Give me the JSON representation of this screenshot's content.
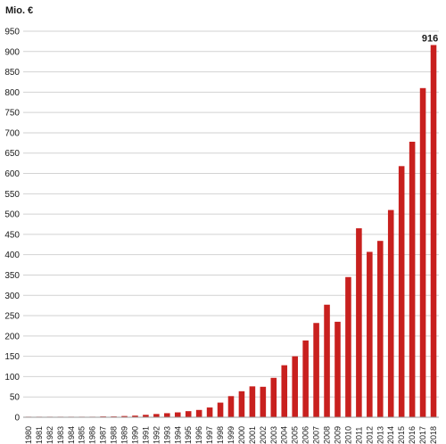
{
  "chart_data": {
    "type": "bar",
    "title": "",
    "unit_label": "Mio. €",
    "xlabel": "",
    "ylabel": "",
    "ylim": [
      0,
      950
    ],
    "yticks": [
      0,
      50,
      100,
      150,
      200,
      250,
      300,
      350,
      400,
      450,
      500,
      550,
      600,
      650,
      700,
      750,
      800,
      850,
      900,
      950
    ],
    "grid": true,
    "bar_color": "#c8201e",
    "categories": [
      "1980",
      "1981",
      "1982",
      "1983",
      "1984",
      "1985",
      "1986",
      "1987",
      "1988",
      "1989",
      "1990",
      "1991",
      "1992",
      "1993",
      "1994",
      "1995",
      "1996",
      "1997",
      "1998",
      "1999",
      "2000",
      "2001",
      "2002",
      "2003",
      "2004",
      "2005",
      "2006",
      "2007",
      "2008",
      "2009",
      "2010",
      "2011",
      "2012",
      "2013",
      "2014",
      "2015",
      "2016",
      "2017",
      "2018"
    ],
    "values": [
      0.5,
      0.5,
      0.5,
      0.5,
      1,
      1,
      1,
      2,
      2,
      3,
      4,
      6,
      8,
      10,
      12,
      15,
      18,
      24,
      36,
      52,
      64,
      76,
      75,
      97,
      128,
      150,
      189,
      232,
      277,
      235,
      345,
      465,
      407,
      434,
      510,
      618,
      678,
      810,
      916
    ],
    "data_labels": [
      {
        "category": "2018",
        "text": "916"
      }
    ]
  }
}
